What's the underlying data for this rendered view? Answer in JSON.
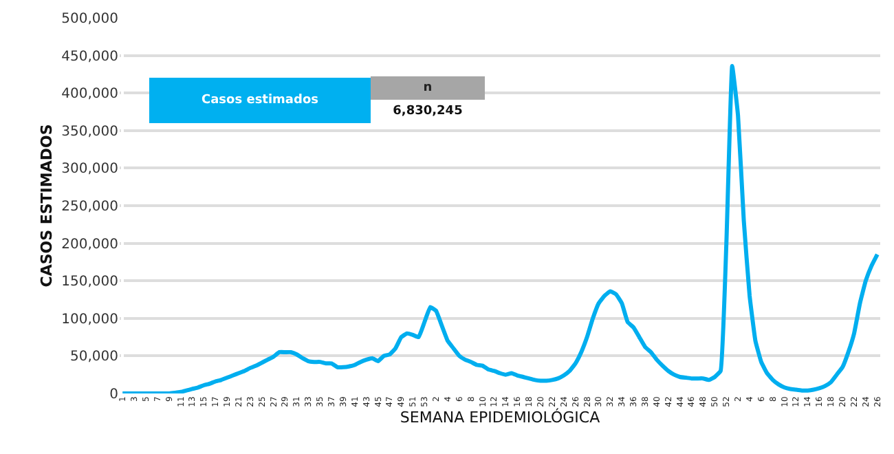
{
  "chart_data": {
    "type": "line",
    "xlabel": "SEMANA EPIDEMIOLÓGICA",
    "ylabel": "CASOS ESTIMADOS",
    "categories": [
      "1",
      null,
      "3",
      null,
      "5",
      null,
      "7",
      null,
      "9",
      null,
      "11",
      null,
      "13",
      null,
      "15",
      null,
      "17",
      null,
      "19",
      null,
      "21",
      null,
      "23",
      null,
      "25",
      null,
      "27",
      null,
      "29",
      null,
      "31",
      null,
      "33",
      null,
      "35",
      null,
      "37",
      null,
      "39",
      null,
      "41",
      null,
      "43",
      null,
      "45",
      null,
      "47",
      null,
      "49",
      null,
      "51",
      null,
      "53",
      null,
      "2",
      null,
      "4",
      null,
      "6",
      null,
      "8",
      null,
      "10",
      null,
      "12",
      null,
      "14",
      null,
      "16",
      null,
      "18",
      null,
      "20",
      null,
      "22",
      null,
      "24",
      null,
      "26",
      null,
      "28",
      null,
      "30",
      null,
      "32",
      null,
      "34",
      null,
      "36",
      null,
      "38",
      null,
      "40",
      null,
      "42",
      null,
      "44",
      null,
      "46",
      null,
      "48",
      null,
      "50",
      null,
      "52",
      null,
      "2",
      null,
      "4",
      null,
      "6",
      null,
      "8",
      null,
      "10",
      null,
      "12",
      null,
      "14",
      null,
      "16",
      null,
      "18",
      null,
      "20",
      null,
      "22",
      null,
      "24",
      null,
      "26"
    ],
    "series": [
      {
        "color": "#00aeef",
        "values": [
          0,
          0,
          0,
          0,
          0,
          0,
          0,
          0,
          0,
          1000,
          2000,
          4000,
          6000,
          8000,
          11000,
          13000,
          16000,
          18000,
          21000,
          24000,
          27000,
          30000,
          34000,
          37000,
          41000,
          45000,
          49000,
          55000,
          55000,
          55000,
          52000,
          47000,
          43000,
          42000,
          42000,
          40000,
          40000,
          35000,
          35000,
          36000,
          38000,
          42000,
          45000,
          47000,
          43000,
          50000,
          52000,
          60000,
          75000,
          80000,
          78000,
          75000,
          95000,
          115000,
          110000,
          90000,
          70000,
          60000,
          50000,
          45000,
          42000,
          38000,
          37000,
          32000,
          30000,
          27000,
          25000,
          27000,
          24000,
          22000,
          20000,
          18000,
          17000,
          17000,
          18000,
          20000,
          24000,
          30000,
          40000,
          55000,
          75000,
          100000,
          120000,
          130000,
          136000,
          132000,
          120000,
          95000,
          88000,
          75000,
          62000,
          55000,
          45000,
          37000,
          30000,
          25000,
          22000,
          21000,
          20000,
          20000,
          20000,
          18000,
          22000,
          30000,
          200000,
          436000,
          370000,
          230000,
          130000,
          70000,
          42000,
          27000,
          18000,
          12000,
          8000,
          6000,
          5000,
          4000,
          4000,
          5000,
          7000,
          10000,
          15000,
          25000,
          35000,
          55000,
          80000,
          120000,
          150000,
          170000,
          185000
        ]
      }
    ],
    "ylim": [
      0,
      500000
    ],
    "yticks": [
      0,
      {
        "value": 50000,
        "label": "50,000"
      },
      {
        "value": 100000,
        "label": "100,000"
      },
      {
        "value": 150000,
        "label": "150,000"
      },
      {
        "value": 200000,
        "label": "200,000"
      },
      {
        "value": 250000,
        "label": "250,000"
      },
      {
        "value": 300000,
        "label": "300,000"
      },
      {
        "value": 350000,
        "label": "350,000"
      },
      {
        "value": 400000,
        "label": "400,000"
      },
      {
        "value": 450000,
        "label": "450,000"
      },
      {
        "value": 500000,
        "label": "500,000"
      }
    ],
    "grid": "y",
    "marker": "none",
    "line_style": "solid",
    "annotations": [
      "Casos estimados",
      "n",
      "6,830,245"
    ]
  }
}
